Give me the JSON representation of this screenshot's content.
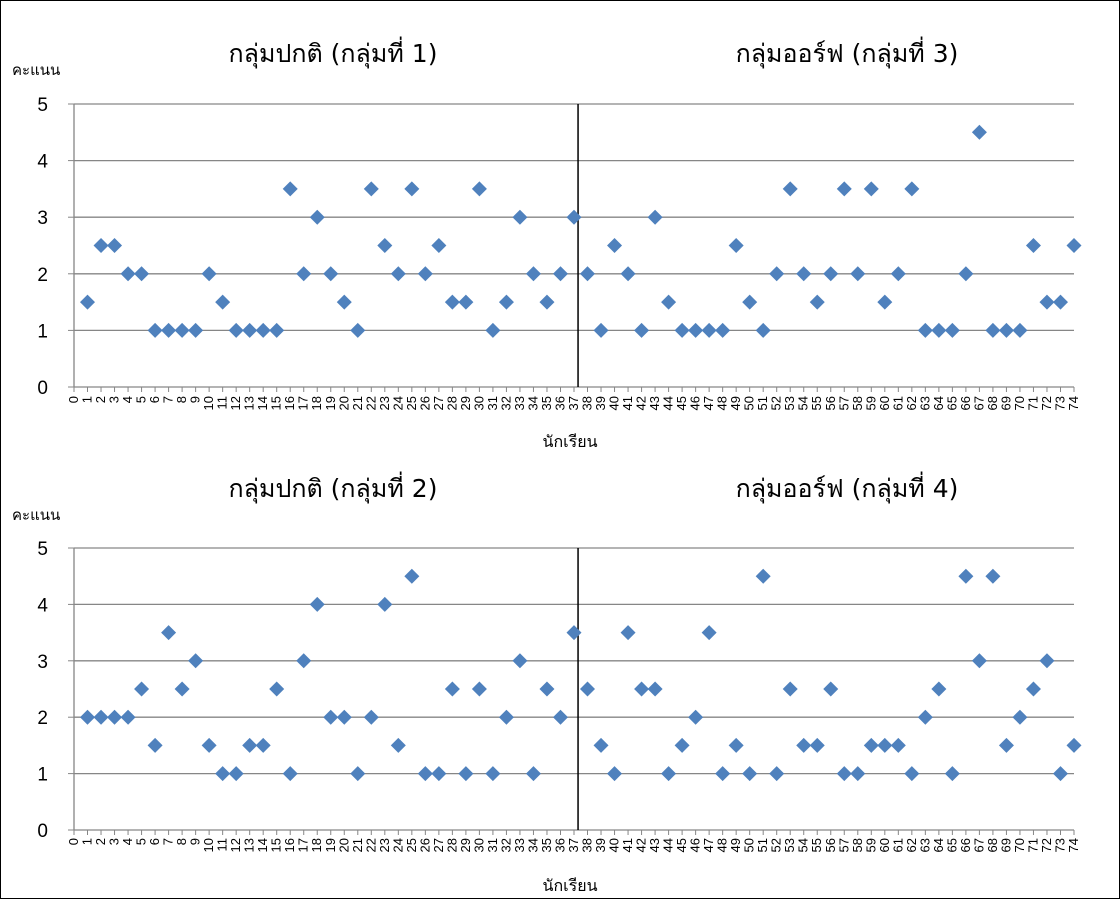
{
  "chart_data": [
    {
      "type": "scatter",
      "titles": [
        "กลุ่มปกติ (กลุ่มที่ 1)",
        "กลุ่มออร์ฟ (กลุ่มที่ 3)"
      ],
      "ylabel": "คะแนน",
      "xlabel": "นักเรียน",
      "ylim": [
        0,
        5
      ],
      "yticks": [
        0,
        1,
        2,
        3,
        4,
        5
      ],
      "grid": true,
      "marker_color": "#4f81bd",
      "x_tick_labels": [
        "0",
        "1",
        "2",
        "3",
        "4",
        "5",
        "6",
        "7",
        "8",
        "9",
        "10",
        "11",
        "12",
        "13",
        "14",
        "15",
        "16",
        "17",
        "18",
        "19",
        "20",
        "21",
        "22",
        "23",
        "24",
        "25",
        "26",
        "27",
        "28",
        "29",
        "30",
        "31",
        "32",
        "33",
        "34",
        "35",
        "36",
        "37",
        "38",
        "39",
        "40",
        "41",
        "42",
        "43",
        "44",
        "45",
        "46",
        "47",
        "48",
        "49",
        "50",
        "51",
        "52",
        "53",
        "54",
        "55",
        "56",
        "57",
        "58",
        "59",
        "60",
        "61",
        "62",
        "63",
        "64",
        "65",
        "66",
        "67",
        "68",
        "69",
        "70",
        "71",
        "72",
        "73",
        "74"
      ],
      "divider_after_index": 37,
      "values": [
        1.5,
        2.5,
        2.5,
        2,
        2,
        1,
        1,
        1,
        1,
        2,
        1.5,
        1,
        1,
        1,
        1,
        3.5,
        2,
        3,
        2,
        1.5,
        1,
        3.5,
        2.5,
        2,
        3.5,
        2,
        2.5,
        1.5,
        1.5,
        3.5,
        1,
        1.5,
        3,
        2,
        1.5,
        2,
        3,
        2,
        1,
        2.5,
        2,
        1,
        3,
        1.5,
        1,
        1,
        1,
        1,
        2.5,
        1.5,
        1,
        2,
        3.5,
        2,
        1.5,
        2,
        3.5,
        2,
        3.5,
        1.5,
        2,
        3.5,
        1,
        1,
        1,
        2,
        4.5,
        1,
        1,
        1,
        2.5,
        1.5,
        1.5,
        2.5
      ]
    },
    {
      "type": "scatter",
      "titles": [
        "กลุ่มปกติ (กลุ่มที่ 2)",
        "กลุ่มออร์ฟ (กลุ่มที่ 4)"
      ],
      "ylabel": "คะแนน",
      "xlabel": "นักเรียน",
      "ylim": [
        0,
        5
      ],
      "yticks": [
        0,
        1,
        2,
        3,
        4,
        5
      ],
      "grid": true,
      "marker_color": "#4f81bd",
      "x_tick_labels": [
        "0",
        "1",
        "2",
        "3",
        "4",
        "5",
        "6",
        "7",
        "8",
        "9",
        "10",
        "11",
        "12",
        "13",
        "14",
        "15",
        "16",
        "17",
        "18",
        "19",
        "20",
        "21",
        "22",
        "23",
        "24",
        "25",
        "26",
        "27",
        "28",
        "29",
        "30",
        "31",
        "32",
        "33",
        "34",
        "35",
        "36",
        "37",
        "38",
        "39",
        "40",
        "41",
        "42",
        "43",
        "44",
        "45",
        "46",
        "47",
        "48",
        "49",
        "50",
        "51",
        "52",
        "53",
        "54",
        "55",
        "56",
        "57",
        "58",
        "59",
        "60",
        "61",
        "62",
        "63",
        "64",
        "65",
        "66",
        "67",
        "68",
        "69",
        "70",
        "71",
        "72",
        "73",
        "74"
      ],
      "divider_after_index": 37,
      "values": [
        2,
        2,
        2,
        2,
        2.5,
        1.5,
        3.5,
        2.5,
        3,
        1.5,
        1,
        1,
        1.5,
        1.5,
        2.5,
        1,
        3,
        4,
        2,
        2,
        1,
        2,
        4,
        1.5,
        4.5,
        1,
        1,
        2.5,
        1,
        2.5,
        1,
        2,
        3,
        1,
        2.5,
        2,
        3.5,
        2.5,
        1.5,
        1,
        3.5,
        2.5,
        2.5,
        1,
        1.5,
        2,
        3.5,
        1,
        1.5,
        1,
        4.5,
        1,
        2.5,
        1.5,
        1.5,
        2.5,
        1,
        1,
        1.5,
        1.5,
        1.5,
        1,
        2,
        2.5,
        1,
        4.5,
        3,
        4.5,
        1.5,
        2,
        2.5,
        3,
        1,
        1.5
      ]
    }
  ]
}
